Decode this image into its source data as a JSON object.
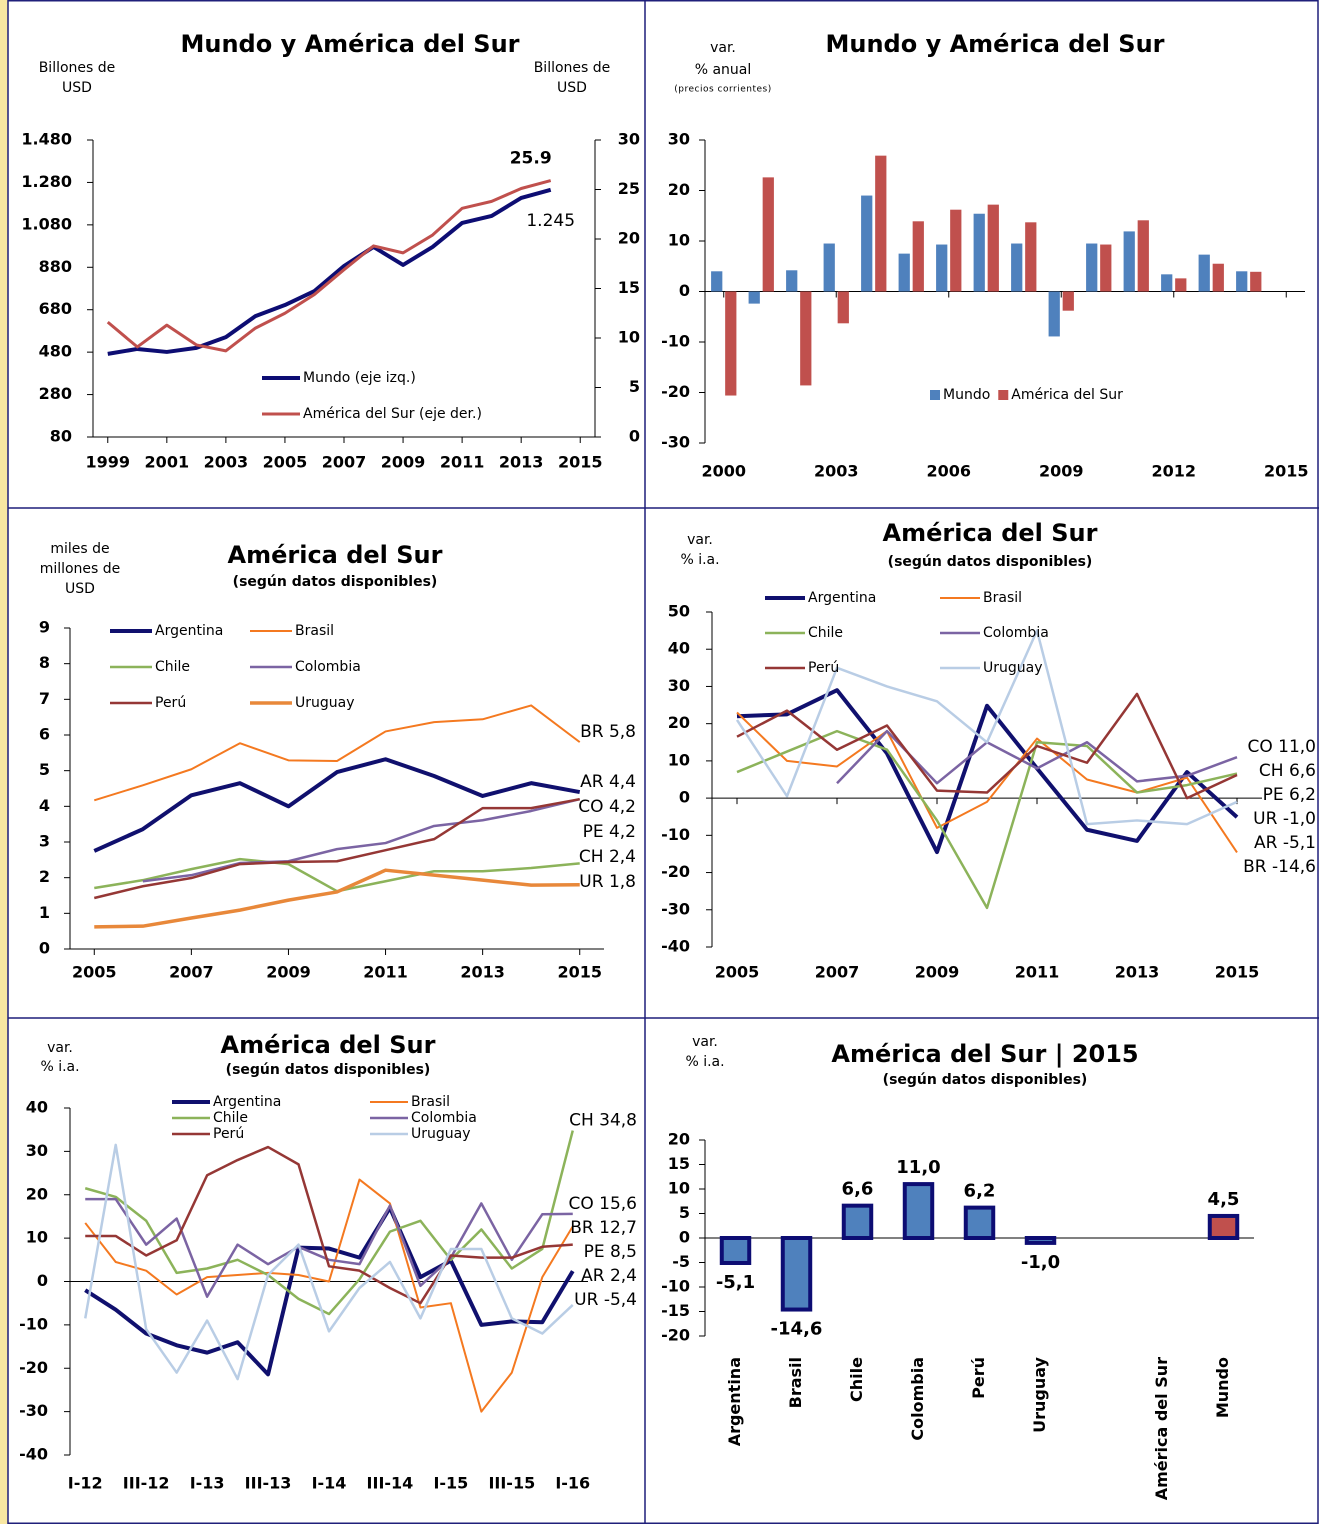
{
  "chart_data": [
    {
      "type": "line",
      "title": "Mundo y América del Sur",
      "y_label": [
        "Billones de",
        "USD"
      ],
      "y2_label": [
        "Billones de",
        "USD"
      ],
      "x": [
        1999,
        2000,
        2001,
        2002,
        2003,
        2004,
        2005,
        2006,
        2007,
        2008,
        2009,
        2010,
        2011,
        2012,
        2013,
        2014
      ],
      "xlim": [
        1998.5,
        2015.5
      ],
      "xticks": [
        1999,
        2001,
        2003,
        2005,
        2007,
        2009,
        2011,
        2013,
        2015
      ],
      "ylim": [
        80,
        1480
      ],
      "yticks": [
        80,
        280,
        480,
        680,
        880,
        {
          "value": 1080,
          "label": "1.080"
        },
        {
          "value": 1280,
          "label": "1.280"
        },
        {
          "value": 1480,
          "label": "1.480"
        }
      ],
      "y2lim": [
        0,
        30
      ],
      "y2ticks": [
        0,
        5,
        10,
        15,
        20,
        25,
        30
      ],
      "series": [
        {
          "name": "Mundo (eje izq.)",
          "color": "#0d0d73",
          "values": [
            472,
            495,
            481,
            500,
            551,
            650,
            702,
            768,
            886,
            976,
            891,
            976,
            1089,
            1122,
            1207,
            1245
          ],
          "value_labels": [
            null,
            null,
            null,
            null,
            null,
            null,
            null,
            null,
            null,
            null,
            null,
            null,
            null,
            null,
            null,
            "1.245"
          ]
        },
        {
          "name": "América del Sur (eje der.)",
          "color": "#c0504d",
          "axis": "y2",
          "values": [
            11.6,
            9.1,
            11.3,
            9.3,
            8.7,
            11.0,
            12.5,
            14.4,
            16.9,
            19.3,
            18.6,
            20.4,
            23.1,
            23.8,
            25.1,
            25.9
          ],
          "value_labels": [
            null,
            null,
            null,
            null,
            null,
            null,
            null,
            null,
            null,
            null,
            null,
            null,
            null,
            null,
            null,
            "25.9"
          ]
        }
      ],
      "legend": "bottom"
    },
    {
      "type": "bar",
      "title": "Mundo y América del Sur",
      "y_label": [
        "var.",
        "% anual"
      ],
      "y_label_note": "(precios corrientes)",
      "x": [
        2000,
        2001,
        2002,
        2003,
        2004,
        2005,
        2006,
        2007,
        2008,
        2009,
        2010,
        2011,
        2012,
        2013,
        2014
      ],
      "xlim": [
        1999.5,
        2015.5
      ],
      "xticks": [
        2000,
        2003,
        2006,
        2009,
        2012,
        2015
      ],
      "ylim": [
        -30,
        30
      ],
      "yticks": [
        -30,
        -20,
        -10,
        0,
        10,
        20,
        30
      ],
      "series": [
        {
          "name": "Mundo",
          "color": "#4f81bd",
          "values": [
            4.0,
            -2.4,
            4.2,
            9.5,
            19.0,
            7.5,
            9.3,
            15.4,
            9.5,
            -8.9,
            9.5,
            11.9,
            3.4,
            7.3,
            4.0
          ]
        },
        {
          "name": "América del Sur",
          "color": "#c0504d",
          "values": [
            -20.6,
            22.6,
            -18.6,
            -6.3,
            26.9,
            13.9,
            16.2,
            17.2,
            13.7,
            -3.8,
            9.3,
            14.1,
            2.6,
            5.5,
            3.9
          ]
        }
      ],
      "legend": "bottom"
    },
    {
      "type": "line",
      "title": "América del Sur",
      "subtitle": "(según datos disponibles)",
      "y_label": [
        "miles de",
        "millones de",
        "USD"
      ],
      "x": [
        2005,
        2006,
        2007,
        2008,
        2009,
        2010,
        2011,
        2012,
        2013,
        2014,
        2015
      ],
      "xlim": [
        2004.5,
        2015.5
      ],
      "xticks": [
        2005,
        2007,
        2009,
        2011,
        2013,
        2015
      ],
      "ylim": [
        0,
        9
      ],
      "yticks": [
        0,
        1,
        2,
        3,
        4,
        5,
        6,
        7,
        8,
        9
      ],
      "series": [
        {
          "name": "Argentina",
          "color": "#10106e",
          "values": [
            2.75,
            3.36,
            4.31,
            4.65,
            4.0,
            4.96,
            5.32,
            4.85,
            4.29,
            4.65,
            4.4
          ],
          "value_labels": [
            null,
            null,
            null,
            null,
            null,
            null,
            null,
            null,
            null,
            null,
            "AR 4,4"
          ]
        },
        {
          "name": "Brasil",
          "color": "#f47920",
          "values": [
            4.17,
            4.59,
            5.04,
            5.77,
            5.29,
            5.27,
            6.1,
            6.36,
            6.44,
            6.83,
            5.8
          ],
          "value_labels": [
            null,
            null,
            null,
            null,
            null,
            null,
            null,
            null,
            null,
            null,
            "BR 5,8"
          ]
        },
        {
          "name": "Chile",
          "color": "#8cb35a",
          "values": [
            1.71,
            1.93,
            2.24,
            2.52,
            2.38,
            1.62,
            1.9,
            2.18,
            2.18,
            2.27,
            2.4
          ],
          "value_labels": [
            null,
            null,
            null,
            null,
            null,
            null,
            null,
            null,
            null,
            null,
            "CH 2,4"
          ]
        },
        {
          "name": "Colombia",
          "color": "#7b64a3",
          "values": [
            null,
            1.9,
            2.07,
            2.41,
            2.46,
            2.8,
            2.97,
            3.45,
            3.61,
            3.87,
            4.2
          ],
          "value_labels": [
            null,
            null,
            null,
            null,
            null,
            null,
            null,
            null,
            null,
            null,
            "CO 4,2"
          ]
        },
        {
          "name": "Perú",
          "color": "#953735",
          "values": [
            1.43,
            1.76,
            1.99,
            2.38,
            2.44,
            2.46,
            2.77,
            3.08,
            3.95,
            3.95,
            4.2
          ],
          "value_labels": [
            null,
            null,
            null,
            null,
            null,
            null,
            null,
            null,
            null,
            null,
            "PE 4,2"
          ]
        },
        {
          "name": "Uruguay",
          "color": "#e8883a",
          "values": [
            0.62,
            0.64,
            0.87,
            1.09,
            1.37,
            1.6,
            2.21,
            2.07,
            1.93,
            1.79,
            1.8
          ],
          "value_labels": [
            null,
            null,
            null,
            null,
            null,
            null,
            null,
            null,
            null,
            null,
            "UR 1,8"
          ]
        }
      ],
      "legend": "top-left"
    },
    {
      "type": "line",
      "title": "América del Sur",
      "subtitle": "(según datos disponibles)",
      "y_label": [
        "var.",
        "% i.a."
      ],
      "x": [
        2005,
        2006,
        2007,
        2008,
        2009,
        2010,
        2011,
        2012,
        2013,
        2014,
        2015
      ],
      "xlim": [
        2004.5,
        2015.5
      ],
      "xticks": [
        2005,
        2007,
        2009,
        2011,
        2013,
        2015
      ],
      "ylim": [
        -40,
        50
      ],
      "yticks": [
        -40,
        -30,
        -20,
        -10,
        0,
        10,
        20,
        30,
        40,
        50
      ],
      "series": [
        {
          "name": "Argentina",
          "color": "#10106e",
          "values": [
            22.0,
            22.5,
            29.0,
            12.0,
            -14.5,
            24.8,
            8.0,
            -8.5,
            -11.5,
            7.0,
            -5.1
          ],
          "value_labels": [
            null,
            null,
            null,
            null,
            null,
            null,
            null,
            null,
            null,
            null,
            "AR -5,1"
          ]
        },
        {
          "name": "Brasil",
          "color": "#f47920",
          "values": [
            23.0,
            10.0,
            8.5,
            18.0,
            -8.0,
            -1.0,
            16.0,
            5.0,
            1.5,
            5.5,
            -14.6
          ],
          "value_labels": [
            null,
            null,
            null,
            null,
            null,
            null,
            null,
            null,
            null,
            null,
            "BR -14,6"
          ]
        },
        {
          "name": "Chile",
          "color": "#8cb35a",
          "values": [
            7.0,
            12.5,
            18.0,
            13.0,
            -6.0,
            -29.5,
            15.0,
            14.0,
            1.5,
            3.5,
            6.6
          ],
          "value_labels": [
            null,
            null,
            null,
            null,
            null,
            null,
            null,
            null,
            null,
            null,
            "CH 6,6"
          ]
        },
        {
          "name": "Colombia",
          "color": "#7b64a3",
          "values": [
            null,
            null,
            4.0,
            18.0,
            4.0,
            15.0,
            8.0,
            15.0,
            4.5,
            6.0,
            11.0
          ],
          "value_labels": [
            null,
            null,
            null,
            null,
            null,
            null,
            null,
            null,
            null,
            null,
            "CO 11,0"
          ]
        },
        {
          "name": "Perú",
          "color": "#953735",
          "values": [
            16.5,
            23.5,
            13.0,
            19.5,
            2.0,
            1.5,
            14.0,
            9.5,
            28.0,
            0.0,
            6.2
          ],
          "value_labels": [
            null,
            null,
            null,
            null,
            null,
            null,
            null,
            null,
            null,
            null,
            "PE 6,2"
          ]
        },
        {
          "name": "Uruguay",
          "color": "#b9cde5",
          "values": [
            21.0,
            0.5,
            35.0,
            30.0,
            26.0,
            15.0,
            45.0,
            -7.0,
            -6.0,
            -7.0,
            -1.0
          ],
          "value_labels": [
            null,
            null,
            null,
            null,
            null,
            null,
            null,
            null,
            null,
            null,
            "UR -1,0"
          ]
        }
      ],
      "legend": "top-left"
    },
    {
      "type": "line",
      "title": "América del Sur",
      "subtitle": "(según datos disponibles)",
      "y_label": [
        "var.",
        "% i.a."
      ],
      "categories": [
        "I-12",
        null,
        "III-12",
        null,
        "I-13",
        null,
        "III-13",
        null,
        "I-14",
        null,
        "III-14",
        null,
        "I-15",
        null,
        "III-15",
        null,
        "I-16"
      ],
      "ylim": [
        -40,
        40
      ],
      "yticks": [
        -40,
        -30,
        -20,
        -10,
        0,
        10,
        20,
        30,
        40
      ],
      "series": [
        {
          "name": "Argentina",
          "color": "#10106e",
          "values": [
            -2,
            -6.5,
            -12,
            -14.7,
            -16.4,
            -14,
            -21.4,
            7.8,
            7.6,
            5.5,
            17,
            1,
            4.8,
            -10,
            -9.2,
            -9.4,
            2.4
          ],
          "value_labels": [
            null,
            null,
            null,
            null,
            null,
            null,
            null,
            null,
            null,
            null,
            null,
            null,
            null,
            null,
            null,
            null,
            "AR 2,4"
          ]
        },
        {
          "name": "Brasil",
          "color": "#f47920",
          "values": [
            13.5,
            4.5,
            2.5,
            -3,
            1,
            1.5,
            2,
            1.5,
            0,
            23.5,
            18,
            -6,
            -5,
            -30,
            -21,
            1,
            12.7
          ],
          "value_labels": [
            null,
            null,
            null,
            null,
            null,
            null,
            null,
            null,
            null,
            null,
            null,
            null,
            null,
            null,
            null,
            null,
            "BR 12,7"
          ]
        },
        {
          "name": "Chile",
          "color": "#8cb35a",
          "values": [
            21.5,
            19.5,
            14,
            2,
            3,
            5,
            1.5,
            -4,
            -7.5,
            0.5,
            11.5,
            14,
            5,
            12,
            3,
            7.5,
            34.8
          ],
          "value_labels": [
            null,
            null,
            null,
            null,
            null,
            null,
            null,
            null,
            null,
            null,
            null,
            null,
            null,
            null,
            null,
            null,
            "CH 34,8"
          ]
        },
        {
          "name": "Colombia",
          "color": "#7b64a3",
          "values": [
            19,
            19,
            8.5,
            14.5,
            -3.5,
            8.5,
            4,
            8,
            5,
            4,
            17.5,
            -1,
            5.5,
            18,
            5,
            15.5,
            15.6
          ],
          "value_labels": [
            null,
            null,
            null,
            null,
            null,
            null,
            null,
            null,
            null,
            null,
            null,
            null,
            null,
            null,
            null,
            null,
            "CO 15,6"
          ]
        },
        {
          "name": "Perú",
          "color": "#953735",
          "values": [
            10.5,
            10.5,
            6,
            9.5,
            24.5,
            28,
            31,
            27,
            3.5,
            2.5,
            -1.5,
            -5,
            6,
            5.5,
            5.5,
            8,
            8.5
          ],
          "value_labels": [
            null,
            null,
            null,
            null,
            null,
            null,
            null,
            null,
            null,
            null,
            null,
            null,
            null,
            null,
            null,
            null,
            "PE 8,5"
          ]
        },
        {
          "name": "Uruguay",
          "color": "#b9cde5",
          "values": [
            -8.5,
            31.5,
            -11,
            -21,
            -9,
            -22.5,
            1.5,
            8.5,
            -11.5,
            -1.5,
            4.5,
            -8.5,
            7.5,
            7.5,
            -8.5,
            -12,
            -5.4
          ],
          "value_labels": [
            null,
            null,
            null,
            null,
            null,
            null,
            null,
            null,
            null,
            null,
            null,
            null,
            null,
            null,
            null,
            null,
            "UR -5,4"
          ]
        }
      ],
      "legend": "top"
    },
    {
      "type": "bar",
      "title": "América del Sur | 2015",
      "subtitle": "(según datos disponibles)",
      "y_label": [
        "var.",
        "% i.a."
      ],
      "categories": [
        "Argentina",
        "Brasil",
        "Chile",
        "Colombia",
        "Perú",
        "Uruguay",
        null,
        "América del Sur",
        "Mundo"
      ],
      "values": [
        -5.1,
        -14.6,
        6.6,
        11.0,
        6.2,
        -1.0,
        null,
        null,
        4.5
      ],
      "value_labels": [
        "-5,1",
        "-14,6",
        "6,6",
        "11,0",
        "6,2",
        "-1,0",
        null,
        null,
        "4,5"
      ],
      "colors": [
        "#4f81bd",
        "#4f81bd",
        "#4f81bd",
        "#4f81bd",
        "#4f81bd",
        "#4f81bd",
        null,
        null,
        "#c0504d"
      ],
      "ylim": [
        -20,
        20
      ],
      "yticks": [
        -20,
        -15,
        -10,
        -5,
        0,
        5,
        10,
        15,
        20
      ]
    }
  ]
}
